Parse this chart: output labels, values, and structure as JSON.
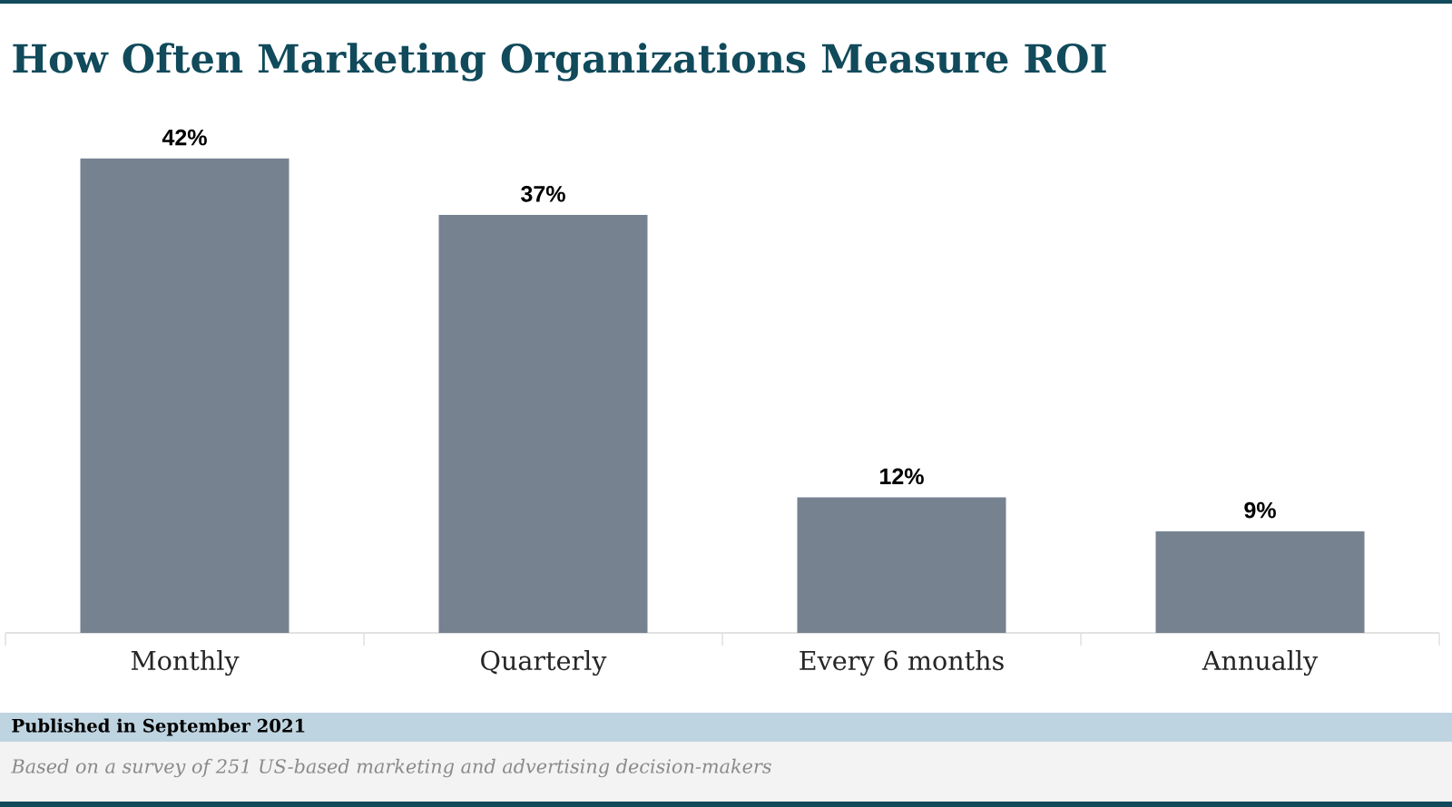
{
  "chart_data": {
    "type": "bar",
    "title": "How Often Marketing Organizations Measure ROI",
    "categories": [
      "Monthly",
      "Quarterly",
      "Every 6 months",
      "Annually"
    ],
    "values": [
      42,
      37,
      12,
      9
    ],
    "value_labels": [
      "42%",
      "37%",
      "12%",
      "9%"
    ],
    "color": "#768290",
    "annotations": [
      "Published in September 2021",
      "Based on a survey of 251 US-based marketing and advertising decision-makers"
    ]
  }
}
